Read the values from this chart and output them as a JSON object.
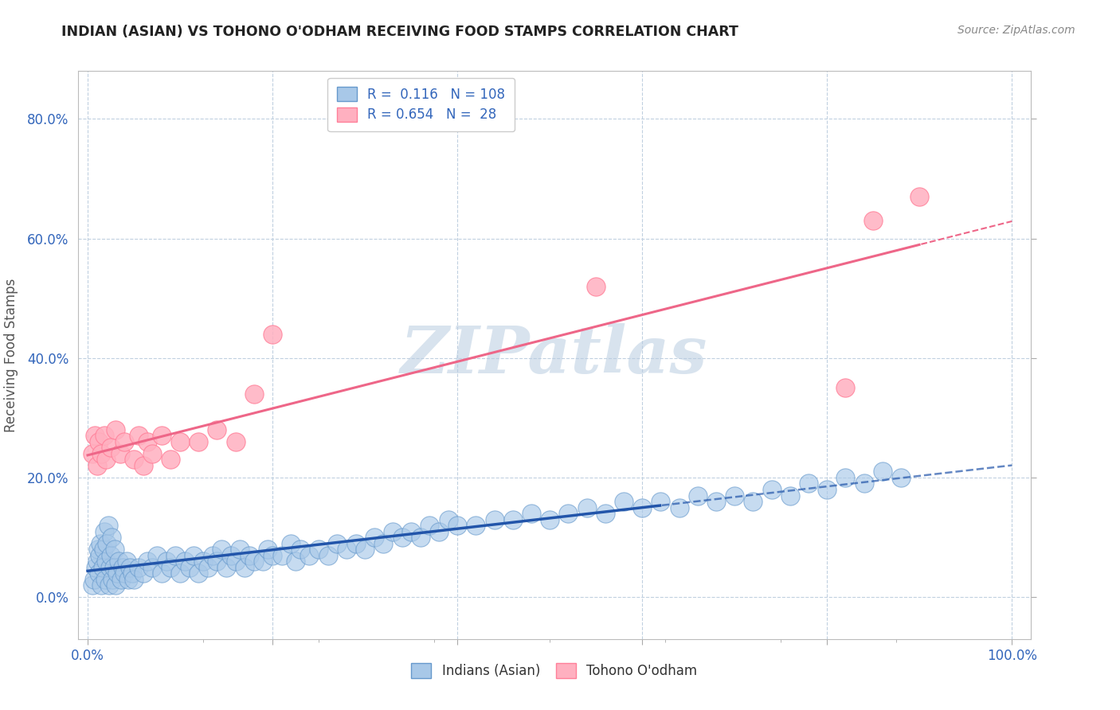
{
  "title": "INDIAN (ASIAN) VS TOHONO O'ODHAM RECEIVING FOOD STAMPS CORRELATION CHART",
  "source": "Source: ZipAtlas.com",
  "ylabel": "Receiving Food Stamps",
  "xlim": [
    -0.01,
    1.02
  ],
  "ylim": [
    -0.07,
    0.88
  ],
  "xticks": [
    0.0,
    0.2,
    0.4,
    0.6,
    0.8,
    1.0
  ],
  "yticks": [
    0.0,
    0.2,
    0.4,
    0.6,
    0.8
  ],
  "ytick_labels": [
    "0.0%",
    "20.0%",
    "40.0%",
    "60.0%",
    "80.0%"
  ],
  "xtick_labels_show": [
    "0.0%",
    "100.0%"
  ],
  "series1_color": "#A8C8E8",
  "series1_edge_color": "#6699CC",
  "series2_color": "#FFB0C0",
  "series2_edge_color": "#FF8099",
  "trend1_color": "#2255AA",
  "trend2_color": "#EE6688",
  "r1": 0.116,
  "n1": 108,
  "r2": 0.654,
  "n2": 28,
  "watermark": "ZIPatlas",
  "background_color": "#FFFFFF",
  "grid_color": "#C0D0E0",
  "legend1_label": "Indians (Asian)",
  "legend2_label": "Tohono O'odham",
  "asian_x": [
    0.005,
    0.007,
    0.009,
    0.01,
    0.011,
    0.012,
    0.013,
    0.014,
    0.015,
    0.016,
    0.017,
    0.018,
    0.019,
    0.02,
    0.021,
    0.022,
    0.023,
    0.024,
    0.025,
    0.026,
    0.027,
    0.028,
    0.029,
    0.03,
    0.032,
    0.034,
    0.036,
    0.038,
    0.04,
    0.042,
    0.044,
    0.046,
    0.048,
    0.05,
    0.055,
    0.06,
    0.065,
    0.07,
    0.075,
    0.08,
    0.085,
    0.09,
    0.095,
    0.1,
    0.105,
    0.11,
    0.115,
    0.12,
    0.125,
    0.13,
    0.135,
    0.14,
    0.145,
    0.15,
    0.155,
    0.16,
    0.165,
    0.17,
    0.175,
    0.18,
    0.19,
    0.195,
    0.2,
    0.21,
    0.22,
    0.225,
    0.23,
    0.24,
    0.25,
    0.26,
    0.27,
    0.28,
    0.29,
    0.3,
    0.31,
    0.32,
    0.33,
    0.34,
    0.35,
    0.36,
    0.37,
    0.38,
    0.39,
    0.4,
    0.42,
    0.44,
    0.46,
    0.48,
    0.5,
    0.52,
    0.54,
    0.56,
    0.58,
    0.6,
    0.62,
    0.64,
    0.66,
    0.68,
    0.7,
    0.72,
    0.74,
    0.76,
    0.78,
    0.8,
    0.82,
    0.84,
    0.86,
    0.88
  ],
  "asian_y": [
    0.02,
    0.03,
    0.05,
    0.06,
    0.08,
    0.04,
    0.07,
    0.09,
    0.02,
    0.05,
    0.08,
    0.11,
    0.03,
    0.06,
    0.09,
    0.12,
    0.02,
    0.05,
    0.07,
    0.1,
    0.03,
    0.05,
    0.08,
    0.02,
    0.04,
    0.06,
    0.03,
    0.05,
    0.04,
    0.06,
    0.03,
    0.05,
    0.04,
    0.03,
    0.05,
    0.04,
    0.06,
    0.05,
    0.07,
    0.04,
    0.06,
    0.05,
    0.07,
    0.04,
    0.06,
    0.05,
    0.07,
    0.04,
    0.06,
    0.05,
    0.07,
    0.06,
    0.08,
    0.05,
    0.07,
    0.06,
    0.08,
    0.05,
    0.07,
    0.06,
    0.06,
    0.08,
    0.07,
    0.07,
    0.09,
    0.06,
    0.08,
    0.07,
    0.08,
    0.07,
    0.09,
    0.08,
    0.09,
    0.08,
    0.1,
    0.09,
    0.11,
    0.1,
    0.11,
    0.1,
    0.12,
    0.11,
    0.13,
    0.12,
    0.12,
    0.13,
    0.13,
    0.14,
    0.13,
    0.14,
    0.15,
    0.14,
    0.16,
    0.15,
    0.16,
    0.15,
    0.17,
    0.16,
    0.17,
    0.16,
    0.18,
    0.17,
    0.19,
    0.18,
    0.2,
    0.19,
    0.21,
    0.2
  ],
  "tohono_x": [
    0.005,
    0.008,
    0.01,
    0.012,
    0.015,
    0.018,
    0.02,
    0.025,
    0.03,
    0.035,
    0.04,
    0.05,
    0.055,
    0.06,
    0.065,
    0.07,
    0.08,
    0.09,
    0.1,
    0.12,
    0.14,
    0.16,
    0.18,
    0.2,
    0.55,
    0.82,
    0.85,
    0.9
  ],
  "tohono_y": [
    0.24,
    0.27,
    0.22,
    0.26,
    0.24,
    0.27,
    0.23,
    0.25,
    0.28,
    0.24,
    0.26,
    0.23,
    0.27,
    0.22,
    0.26,
    0.24,
    0.27,
    0.23,
    0.26,
    0.26,
    0.28,
    0.26,
    0.34,
    0.44,
    0.52,
    0.35,
    0.63,
    0.67
  ]
}
